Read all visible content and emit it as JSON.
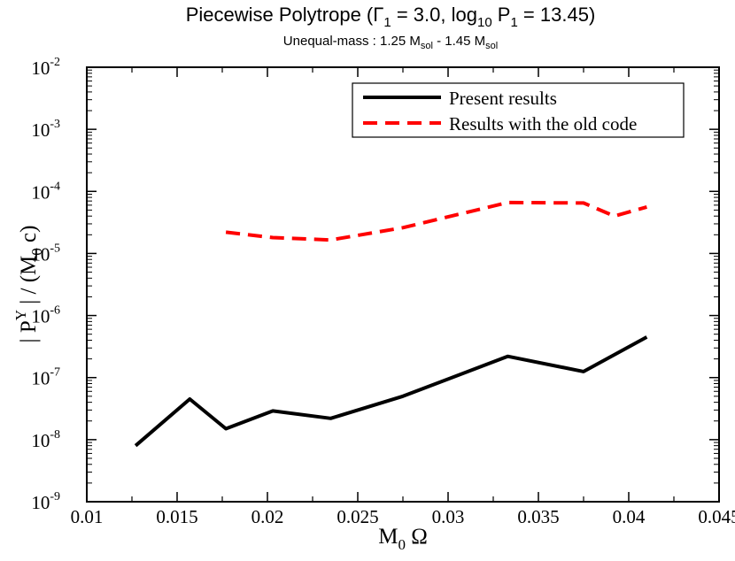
{
  "chart_data": {
    "type": "line",
    "title": {
      "main": "Piecewise Polytrope  (",
      "gamma_sym": "Γ",
      "gamma_sub": "1",
      "gamma_val": " = 3.0,  log",
      "log_sub": "10",
      "p_label": " P",
      "p_sub": "1",
      "p_val": " = 13.45)"
    },
    "subtitle": {
      "part1": "Unequal-mass : 1.25 M",
      "sub1": "sol",
      "part2": " - 1.45 M",
      "sub2": "sol"
    },
    "xlabel": {
      "base": "M",
      "sub": "0",
      "rest": " Ω"
    },
    "ylabel": {
      "p1": "| P",
      "sup": "Y",
      "p2": " | / (M",
      "sub": "0",
      "p3": " c)"
    },
    "xlim": [
      0.01,
      0.045
    ],
    "ylim_log10": [
      -9,
      -2
    ],
    "y_scale": "log",
    "x_ticks": [
      "0.01",
      "0.015",
      "0.02",
      "0.025",
      "0.03",
      "0.035",
      "0.04",
      "0.045"
    ],
    "y_ticks": [
      {
        "base": "10",
        "exp": "-9"
      },
      {
        "base": "10",
        "exp": "-8"
      },
      {
        "base": "10",
        "exp": "-7"
      },
      {
        "base": "10",
        "exp": "-6"
      },
      {
        "base": "10",
        "exp": "-5"
      },
      {
        "base": "10",
        "exp": "-4"
      },
      {
        "base": "10",
        "exp": "-3"
      },
      {
        "base": "10",
        "exp": "-2"
      }
    ],
    "legend_position": "top-right",
    "grid": false,
    "series": [
      {
        "name": "Present results",
        "color": "#000000",
        "style": "solid",
        "x": [
          0.0127,
          0.0157,
          0.0177,
          0.0203,
          0.0235,
          0.0275,
          0.0333,
          0.0375,
          0.041
        ],
        "y": [
          8e-09,
          4.5e-08,
          1.5e-08,
          2.9e-08,
          2.2e-08,
          5e-08,
          2.2e-07,
          1.25e-07,
          4.5e-07
        ]
      },
      {
        "name": "Results with the old code",
        "color": "#ff0000",
        "style": "dashed",
        "x": [
          0.0177,
          0.0203,
          0.0235,
          0.0275,
          0.0333,
          0.0375,
          0.0392,
          0.041
        ],
        "y": [
          2.2e-05,
          1.8e-05,
          1.65e-05,
          2.6e-05,
          6.6e-05,
          6.5e-05,
          4e-05,
          5.6e-05
        ]
      }
    ]
  }
}
